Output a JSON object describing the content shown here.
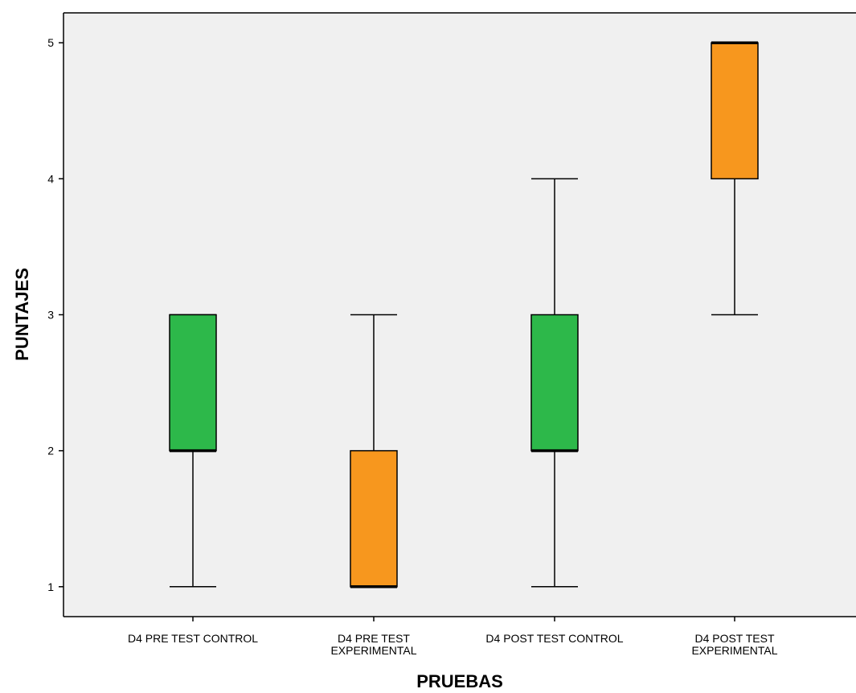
{
  "chart_data": {
    "type": "boxplot",
    "xlabel": "PRUEBAS",
    "ylabel": "PUNTAJES",
    "ylim": [
      0.78,
      5.22
    ],
    "yticks": [
      1,
      2,
      3,
      4,
      5
    ],
    "grid": false,
    "background": "#f0f0f0",
    "categories": [
      {
        "label_lines": [
          "D4 PRE TEST CONTROL"
        ],
        "min": 1,
        "q1": 2,
        "median": 2,
        "q3": 3,
        "max": 3,
        "color": "#2db84a"
      },
      {
        "label_lines": [
          "D4 PRE TEST",
          "EXPERIMENTAL"
        ],
        "min": 1,
        "q1": 1,
        "median": 1,
        "q3": 2,
        "max": 3,
        "color": "#f7971e"
      },
      {
        "label_lines": [
          "D4 POST TEST CONTROL"
        ],
        "min": 1,
        "q1": 2,
        "median": 2,
        "q3": 3,
        "max": 4,
        "color": "#2db84a"
      },
      {
        "label_lines": [
          "D4 POST TEST",
          "EXPERIMENTAL"
        ],
        "min": 3,
        "q1": 4,
        "median": 5,
        "q3": 5,
        "max": 5,
        "color": "#f7971e"
      }
    ]
  }
}
